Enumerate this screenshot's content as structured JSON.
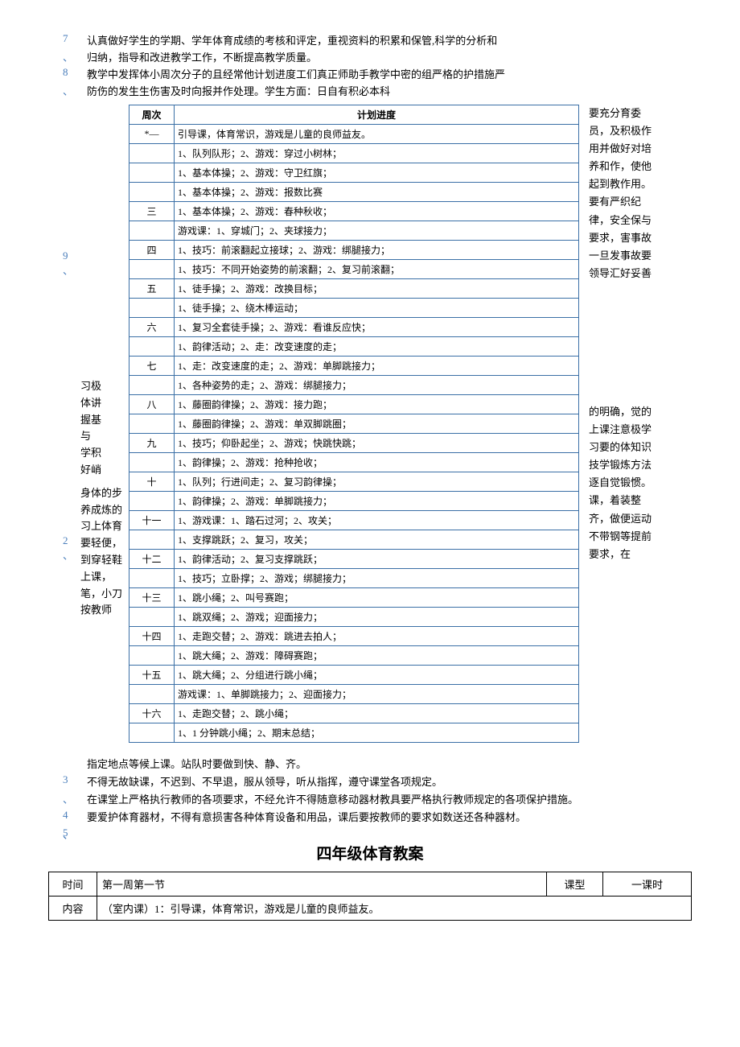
{
  "topParas": {
    "p7num": "7",
    "p7sub": "、",
    "p7a": "认真做好学生的学期、学年体育成绩的考核和评定，重视资料的积累和保管,科学的分析和",
    "p7b": "归纳，指导和改进教学工作，不断提高教学质量。",
    "p8num": "8",
    "p8sub": "、",
    "p8a": "教学中发挥体小周次分子的且经常他计划进度工们真正师助手教学中密的组严格的护措施严",
    "p8b": "防伤的发生生伤害及时向报并作处理。学生方面：日自有积必本科"
  },
  "headerRow": {
    "c1": "周次",
    "c2": "计划进度"
  },
  "starRow": "*—",
  "schedule": [
    {
      "wk": "",
      "content": "引导课，体育常识，游戏是儿童的良师益友。"
    },
    {
      "wk": "",
      "content": "1、队列队形；2、游戏：穿过小树林；"
    },
    {
      "wk": "",
      "content": "1、基本体操；2、游戏：守卫红旗；"
    },
    {
      "wk": "",
      "content": "1、基本体操；2、游戏：报数比赛"
    },
    {
      "wk": "三",
      "content": "1、基本体操；2、游戏：春种秋收；"
    },
    {
      "wk": "",
      "content": "游戏课：1、穿城门；2、夹球接力；"
    },
    {
      "wk": "四",
      "content": "1、技巧：前滚翻起立接球；2、游戏：绑腿接力；"
    },
    {
      "wk": "",
      "content": "1、技巧：不同开始姿势的前滚翻；2、复习前滚翻；"
    },
    {
      "wk": "五",
      "content": "1、徒手操；2、游戏：改换目标；"
    },
    {
      "wk": "",
      "content": "1、徒手操；2、绕木棒运动；"
    },
    {
      "wk": "六",
      "content": "1、复习全套徒手操；2、游戏：看谁反应快；"
    },
    {
      "wk": "",
      "content": "1、韵律活动；2、走：改变速度的走；"
    },
    {
      "wk": "七",
      "content": "1、走：改变速度的走；2、游戏：单脚跳接力；"
    },
    {
      "wk": "",
      "content": "1、各种姿势的走；2、游戏：绑腿接力；"
    },
    {
      "wk": "八",
      "content": "1、藤圈韵律操；2、游戏：接力跑；"
    },
    {
      "wk": "",
      "content": "1、藤圈韵律操；2、游戏：单双脚跳圈；"
    },
    {
      "wk": "九",
      "content": "1、技巧；仰卧起坐；2、游戏；快跳快跳；"
    },
    {
      "wk": "",
      "content": "1、韵律操；2、游戏：抢种抢收；"
    },
    {
      "wk": "十",
      "content": "1、队列；行进间走；2、复习韵律操；"
    },
    {
      "wk": "",
      "content": "1、韵律操；2、游戏：单脚跳接力；"
    },
    {
      "wk": "十一",
      "content": "1、游戏课：1、踏石过河；2、攻关；"
    },
    {
      "wk": "",
      "content": "1、支撑跳跃；2、复习，攻关；"
    },
    {
      "wk": "十二",
      "content": "1、韵律活动；2、复习支撑跳跃；"
    },
    {
      "wk": "",
      "content": "1、技巧；立卧撑；2、游戏；绑腿接力；"
    },
    {
      "wk": "十三",
      "content": "1、跳小绳；2、叫号赛跑；"
    },
    {
      "wk": "",
      "content": "1、跳双绳；2、游戏；迎面接力；"
    },
    {
      "wk": "十四",
      "content": "1、走跑交替；2、游戏：跳进去拍人；"
    },
    {
      "wk": "",
      "content": "1、跳大绳；2、游戏：障碍赛跑；"
    },
    {
      "wk": "十五",
      "content": "1、跳大绳；2、分组进行跳小绳；"
    },
    {
      "wk": "",
      "content": "游戏课：1、单脚跳接力；2、迎面接力；"
    },
    {
      "wk": "十六",
      "content": "1、走跑交替；2、跳小绳；"
    },
    {
      "wk": "",
      "content": "1、1 分钟跳小绳；2、期末总结；"
    }
  ],
  "leftBlocks": {
    "nine": "9",
    "nineSub": "、",
    "two": "2",
    "twoSub": "、",
    "b1": "习极\n体讲\n握基\n与\n学积\n好峭",
    "b2": "身体的步\n养成炼的\n习上体育\n要轻便，\n到穿轻鞋\n上课，\n笔，小刀\n按教师"
  },
  "rightBlocks": {
    "r1": "要充分育委员，及积极作用并做好对培养和作，使他起到教作用。\n要有严织纪律，安全保与要求，害事故一旦发事故要领导汇好妥善",
    "r2": "的明确，觉的上课注意极学习要的体知识技学锻炼方法逐自觉锻惯。\n课，着装整齐，做便运动不带钢等提前要求，在"
  },
  "bottomParas": {
    "line0": "指定地点等候上课。站队时要做到快、静、齐。",
    "n3": "3",
    "sub3": "、",
    "l3": "不得无故缺课，不迟到、不早退，服从领导，听从指挥，遵守课堂各项规定。",
    "n4": "4",
    "sub4": "、",
    "l4": "在课堂上严格执行教师的各项要求，不经允许不得随意移动器材教具要严格执行教师规定的各项保护措施。",
    "n5": "5",
    "sub5": "、",
    "l5": "要爱护体育器材，不得有意损害各种体育设备和用品，课后要按教师的要求如数送还各种器材。"
  },
  "title": "四年级体育教案",
  "lessonTable": {
    "timeLbl": "时间",
    "timeVal": "第一周第一节",
    "typeLbl": "课型",
    "typeVal": "一课时",
    "contentLbl": "内容",
    "contentVal": "（室内课）1：引导课，体育常识，游戏是儿童的良师益友。"
  }
}
